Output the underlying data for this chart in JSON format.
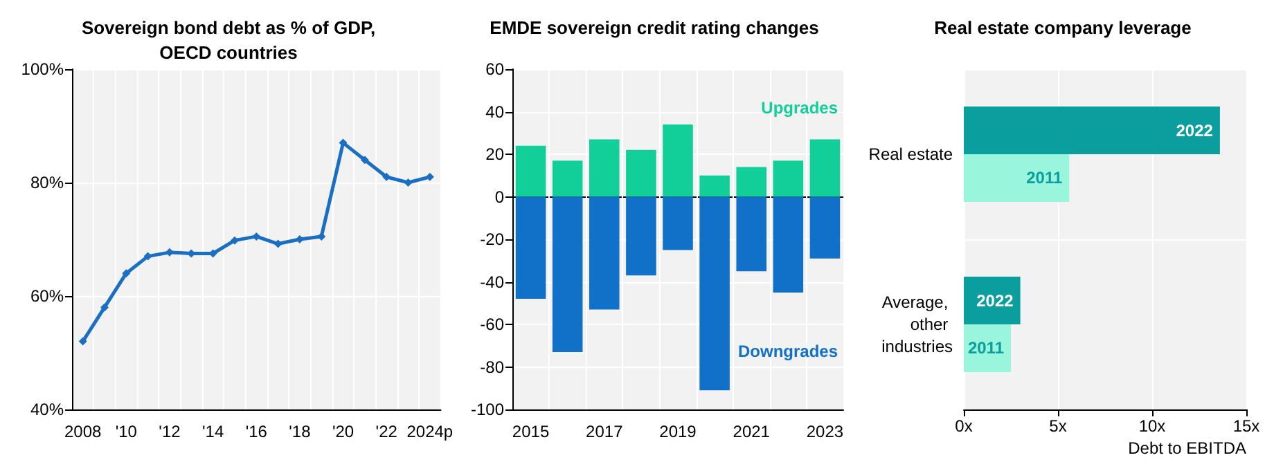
{
  "chart_data": [
    {
      "type": "line",
      "title": "Sovereign bond debt as % of GDP,\nOECD countries",
      "categories": [
        "2008",
        null,
        "'10",
        null,
        "'12",
        null,
        "'14",
        null,
        "'16",
        null,
        "'18",
        null,
        "'20",
        null,
        "'22",
        null,
        "2024p"
      ],
      "series": [
        {
          "color": "#1a6fc4",
          "values": [
            52,
            58,
            64,
            67,
            67.7,
            67.5,
            67.5,
            69.8,
            70.5,
            69.2,
            70,
            70.5,
            87,
            84,
            81,
            80,
            81
          ]
        }
      ],
      "ylim": [
        40,
        100
      ],
      "yticks": [
        {
          "value": 40,
          "label": "40%"
        },
        {
          "value": 60,
          "label": "60%"
        },
        {
          "value": 80,
          "label": "80%"
        },
        {
          "value": 100,
          "label": "100%"
        }
      ],
      "grid": true,
      "legend": false,
      "marker": "diamond",
      "line_style": "solid"
    },
    {
      "type": "bar",
      "title": "EMDE sovereign credit rating changes",
      "categories": [
        "2015",
        null,
        "2017",
        null,
        "2019",
        null,
        "2021",
        null,
        "2023"
      ],
      "stacked": true,
      "series": [
        {
          "name": "Upgrades",
          "color": "#12cf99",
          "values": [
            24,
            17,
            27,
            22,
            34,
            10,
            14,
            17,
            27
          ]
        },
        {
          "name": "Downgrades",
          "color": "#1170c8",
          "values": [
            -48,
            -73,
            -53,
            -37,
            -25,
            -91,
            -35,
            -45,
            -29
          ]
        }
      ],
      "ylim": [
        -100,
        60
      ],
      "yticks": [
        -100,
        -80,
        -60,
        -40,
        -20,
        0,
        20,
        40,
        60
      ],
      "grid": true,
      "legend": false
    },
    {
      "type": "bar",
      "orientation": "horizontal",
      "title": "Real estate company leverage",
      "xlabel": "Debt to EBITDA",
      "categories": [
        "Real estate",
        "Average, other industries"
      ],
      "series": [
        {
          "name": "2022",
          "color": "#0a9e9e",
          "values": [
            13.6,
            3.0
          ]
        },
        {
          "name": "2011",
          "color": "#99f5dc",
          "values": [
            5.6,
            2.5
          ]
        }
      ],
      "xlim": [
        0,
        15
      ],
      "xticks": [
        {
          "value": 0,
          "label": "0x"
        },
        {
          "value": 5,
          "label": "5x"
        },
        {
          "value": 10,
          "label": "10x"
        },
        {
          "value": 15,
          "label": "15x"
        }
      ],
      "grid": true,
      "legend": false
    }
  ]
}
